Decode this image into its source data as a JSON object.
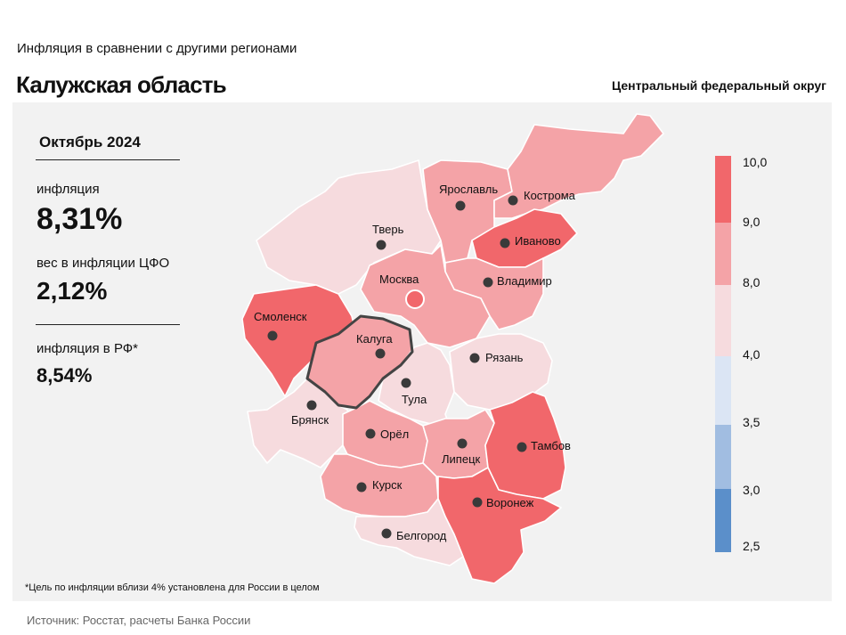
{
  "header": {
    "subtitle": "Инфляция  в сравнении  с другими  регионами",
    "title": "Калужская область",
    "district": "Центральный федеральный округ"
  },
  "stats": {
    "period": "Октябрь 2024",
    "inflation_label": "инфляция",
    "inflation_value": "8,31%",
    "weight_label": "вес в инфляции  ЦФО",
    "weight_value": "2,12%",
    "rf_label": "инфляция  в РФ*",
    "rf_value": "8,54%"
  },
  "footnote": "*Цель по инфляции вблизи 4% установлена для России в целом",
  "source": "Источник: Росстат, расчеты Банка России",
  "colors": {
    "over9": "#f1676b",
    "r8to9": "#f4a3a7",
    "r4to8": "#f6dbde",
    "r35to4": "#dbe5f4",
    "r3to35": "#a1bde1",
    "under3": "#5b8fca",
    "selected_outline": "#444444",
    "panel_bg": "#f2f2f2"
  },
  "legend": {
    "ticks": [
      "10,0",
      "9,0",
      "8,0",
      "4,0",
      "3,5",
      "3,0",
      "2,5"
    ]
  },
  "regions": [
    {
      "key": "tver",
      "name": "Тверь",
      "band": "r4to8"
    },
    {
      "key": "yaroslavl",
      "name": "Ярославль",
      "band": "r8to9"
    },
    {
      "key": "kostroma",
      "name": "Кострома",
      "band": "r8to9"
    },
    {
      "key": "ivanovo",
      "name": "Иваново",
      "band": "over9"
    },
    {
      "key": "vladimir",
      "name": "Владимир",
      "band": "r8to9"
    },
    {
      "key": "moscow",
      "name": "Москва",
      "band": "r8to9"
    },
    {
      "key": "moscow_city",
      "name": "",
      "band": "over9"
    },
    {
      "key": "smolensk",
      "name": "Смоленск",
      "band": "over9"
    },
    {
      "key": "kaluga",
      "name": "Калуга",
      "band": "r8to9",
      "selected": true
    },
    {
      "key": "tula",
      "name": "Тула",
      "band": "r4to8"
    },
    {
      "key": "ryazan",
      "name": "Рязань",
      "band": "r4to8"
    },
    {
      "key": "bryansk",
      "name": "Брянск",
      "band": "r4to8"
    },
    {
      "key": "orel",
      "name": "Орёл",
      "band": "r8to9"
    },
    {
      "key": "lipetsk",
      "name": "Липецк",
      "band": "r8to9"
    },
    {
      "key": "tambov",
      "name": "Тамбов",
      "band": "over9"
    },
    {
      "key": "kursk",
      "name": "Курск",
      "band": "r8to9"
    },
    {
      "key": "voronezh",
      "name": "Воронеж",
      "band": "over9"
    },
    {
      "key": "belgorod",
      "name": "Белгород",
      "band": "r4to8"
    }
  ]
}
